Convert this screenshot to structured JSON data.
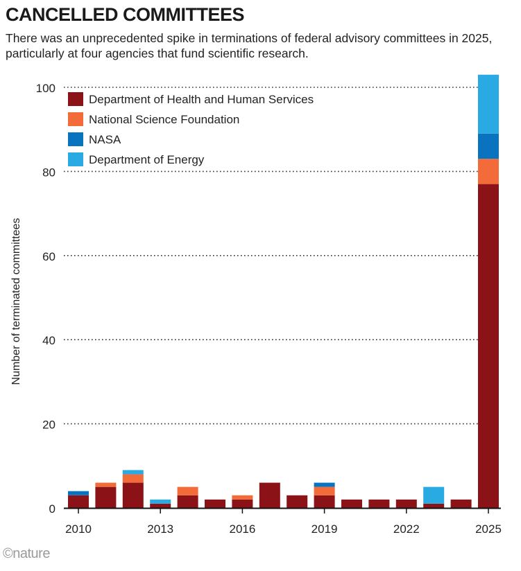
{
  "header": {
    "title": "CANCELLED COMMITTEES",
    "subtitle": "There was an unprecedented spike in terminations of federal advisory committees in 2025, particularly at four agencies that fund scientific research."
  },
  "credit": "©nature",
  "chart_data": {
    "type": "bar",
    "stacked": true,
    "title": "CANCELLED COMMITTEES",
    "ylabel": "Number of terminated committees",
    "xlabel": "",
    "ylim": [
      0,
      100
    ],
    "yticks": [
      0,
      20,
      40,
      60,
      80,
      100
    ],
    "xtick_labels": [
      "2010",
      "2013",
      "2016",
      "2019",
      "2022",
      "2025"
    ],
    "categories": [
      "2010",
      "2011",
      "2012",
      "2013",
      "2014",
      "2015",
      "2016",
      "2017",
      "2018",
      "2019",
      "2020",
      "2021",
      "2022",
      "2023",
      "2024",
      "2025"
    ],
    "grid": "horizontal dotted",
    "legend_position": "top-left",
    "series": [
      {
        "name": "Department of Health and Human Services",
        "color": "#8b1217",
        "values": [
          3,
          5,
          6,
          1,
          3,
          2,
          2,
          6,
          3,
          3,
          2,
          2,
          2,
          1,
          2,
          77
        ]
      },
      {
        "name": "National Science Foundation",
        "color": "#f26b38",
        "values": [
          0,
          1,
          2,
          0,
          2,
          0,
          1,
          0,
          0,
          2,
          0,
          0,
          0,
          0,
          0,
          6
        ]
      },
      {
        "name": "NASA",
        "color": "#0a73c0",
        "values": [
          1,
          0,
          0,
          0,
          0,
          0,
          0,
          0,
          0,
          1,
          0,
          0,
          0,
          0,
          0,
          6
        ]
      },
      {
        "name": "Department of Energy",
        "color": "#2aaae2",
        "values": [
          0,
          0,
          1,
          1,
          0,
          0,
          0,
          0,
          0,
          0,
          0,
          0,
          0,
          4,
          0,
          14
        ]
      }
    ]
  }
}
